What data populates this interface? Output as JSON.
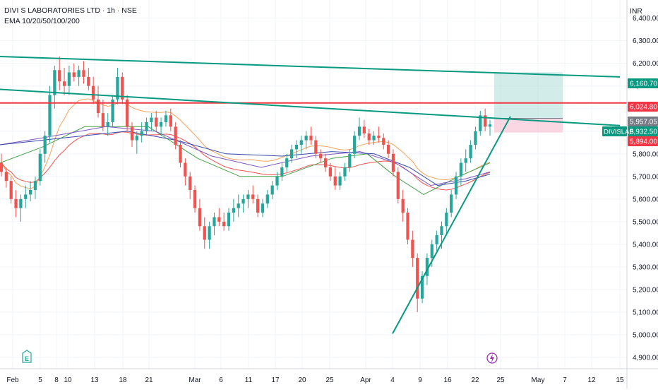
{
  "header": {
    "title": "DIVI S LABORATORIES LTD · 1h · NSE",
    "indicator": "EMA 10/20/50/100/200"
  },
  "unit": "INR",
  "colors": {
    "up": "#26a69a",
    "down": "#ef5350",
    "trendline": "#089981",
    "resistance": "#f23645",
    "ema10": "#f7a35c",
    "ema20": "#ef5350",
    "ema50": "#43a047",
    "ema100": "#7e57c2",
    "ema200": "#3949ab",
    "target_zone": "#b2dfdb",
    "stop_zone": "#f8bbd0"
  },
  "chart_data": {
    "type": "candlestick",
    "title": "DIVI S LABORATORIES LTD · 1h · NSE",
    "ylabel": "INR",
    "ylim": [
      4850,
      6480
    ],
    "y_ticks": [
      4900,
      5000,
      5100,
      5200,
      5300,
      5400,
      5500,
      5600,
      5700,
      5800,
      5900,
      6000,
      6100,
      6200,
      6300,
      6400
    ],
    "y_tick_labels": [
      "4,900.00",
      "5,000.00",
      "5,100.00",
      "5,200.00",
      "5,300.00",
      "5,400.00",
      "5,500.00",
      "5,600.00",
      "5,700.00",
      "5,800.00",
      "5,900.00",
      "6,000.00",
      "6,100.00",
      "6,200.00",
      "6,300.00",
      "6,400.00"
    ],
    "x_ticks": [
      "Feb",
      "5",
      "8",
      "10",
      "13",
      "18",
      "21",
      "Mar",
      "6",
      "11",
      "17",
      "20",
      "25",
      "Apr",
      "4",
      "9",
      "16",
      "22",
      "25",
      "May",
      "7",
      "12",
      "15"
    ],
    "price_marks": [
      {
        "label": "6,160.70",
        "value": 6160.7,
        "style": "trendline"
      },
      {
        "label": "6,024.80",
        "value": 6024.8,
        "style": "resistance"
      },
      {
        "label": "5,957.05",
        "value": 5957.05,
        "style": "neutral"
      },
      {
        "label": "5,932.50",
        "value": 5932.5,
        "style": "current"
      },
      {
        "label": "5,894.00",
        "value": 5894.0,
        "style": "stop"
      }
    ],
    "current_price": {
      "symbol": "DIVISLAB",
      "value": 5932.5
    },
    "horizontal_lines": [
      {
        "value": 6024.8,
        "role": "resistance"
      }
    ],
    "trendlines": [
      {
        "from": {
          "date": "Feb 1",
          "price": 6230
        },
        "to": {
          "date": "May 15",
          "price": 6140
        }
      },
      {
        "from": {
          "date": "Feb 1",
          "price": 6085
        },
        "to": {
          "date": "May 15",
          "price": 5925
        }
      },
      {
        "from": {
          "date": "Apr 4",
          "price": 5005
        },
        "to": {
          "date": "Apr 24",
          "price": 5965
        }
      }
    ],
    "position": {
      "type": "long",
      "entry": 5957.05,
      "target": 6160.7,
      "stop": 5894.0,
      "from_date": "Apr 23",
      "to_date": "May 2"
    },
    "ohlc": [
      [
        5760,
        5800,
        5700,
        5720
      ],
      [
        5720,
        5740,
        5650,
        5680
      ],
      [
        5680,
        5700,
        5580,
        5600
      ],
      [
        5600,
        5640,
        5520,
        5560
      ],
      [
        5560,
        5620,
        5500,
        5600
      ],
      [
        5600,
        5660,
        5560,
        5620
      ],
      [
        5620,
        5680,
        5590,
        5640
      ],
      [
        5640,
        5700,
        5600,
        5680
      ],
      [
        5680,
        5820,
        5660,
        5800
      ],
      [
        5800,
        5900,
        5760,
        5880
      ],
      [
        5880,
        6100,
        5850,
        6060
      ],
      [
        6060,
        6190,
        6000,
        6170
      ],
      [
        6170,
        6230,
        6080,
        6120
      ],
      [
        6120,
        6180,
        6060,
        6100
      ],
      [
        6100,
        6190,
        6060,
        6160
      ],
      [
        6160,
        6200,
        6120,
        6140
      ],
      [
        6140,
        6190,
        6100,
        6170
      ],
      [
        6170,
        6210,
        6110,
        6140
      ],
      [
        6140,
        6180,
        6080,
        6100
      ],
      [
        6100,
        6140,
        6020,
        6040
      ],
      [
        6040,
        6100,
        5960,
        5980
      ],
      [
        5980,
        6040,
        5900,
        5920
      ],
      [
        5920,
        5980,
        5880,
        5940
      ],
      [
        5940,
        6060,
        5920,
        6040
      ],
      [
        6040,
        6180,
        6020,
        6140
      ],
      [
        6140,
        6160,
        6020,
        6040
      ],
      [
        6040,
        6060,
        5900,
        5920
      ],
      [
        5920,
        5940,
        5830,
        5860
      ],
      [
        5860,
        5900,
        5800,
        5880
      ],
      [
        5880,
        5940,
        5850,
        5900
      ],
      [
        5900,
        5960,
        5880,
        5940
      ],
      [
        5940,
        5980,
        5900,
        5960
      ],
      [
        5960,
        5990,
        5900,
        5920
      ],
      [
        5920,
        5960,
        5880,
        5940
      ],
      [
        5940,
        5990,
        5920,
        5970
      ],
      [
        5970,
        6000,
        5900,
        5920
      ],
      [
        5920,
        5940,
        5820,
        5840
      ],
      [
        5840,
        5860,
        5740,
        5760
      ],
      [
        5760,
        5780,
        5660,
        5700
      ],
      [
        5700,
        5720,
        5600,
        5640
      ],
      [
        5640,
        5660,
        5540,
        5560
      ],
      [
        5560,
        5600,
        5460,
        5480
      ],
      [
        5480,
        5520,
        5380,
        5420
      ],
      [
        5420,
        5500,
        5380,
        5480
      ],
      [
        5480,
        5540,
        5440,
        5520
      ],
      [
        5520,
        5560,
        5480,
        5500
      ],
      [
        5500,
        5540,
        5460,
        5480
      ],
      [
        5480,
        5560,
        5460,
        5540
      ],
      [
        5540,
        5600,
        5500,
        5560
      ],
      [
        5560,
        5620,
        5520,
        5580
      ],
      [
        5580,
        5620,
        5540,
        5600
      ],
      [
        5600,
        5640,
        5560,
        5620
      ],
      [
        5620,
        5660,
        5580,
        5600
      ],
      [
        5600,
        5620,
        5520,
        5540
      ],
      [
        5540,
        5600,
        5520,
        5580
      ],
      [
        5580,
        5640,
        5560,
        5620
      ],
      [
        5620,
        5680,
        5600,
        5660
      ],
      [
        5660,
        5720,
        5640,
        5700
      ],
      [
        5700,
        5760,
        5680,
        5740
      ],
      [
        5740,
        5800,
        5720,
        5780
      ],
      [
        5780,
        5840,
        5760,
        5820
      ],
      [
        5820,
        5860,
        5780,
        5840
      ],
      [
        5840,
        5880,
        5800,
        5860
      ],
      [
        5860,
        5900,
        5820,
        5880
      ],
      [
        5880,
        5920,
        5840,
        5860
      ],
      [
        5860,
        5880,
        5780,
        5800
      ],
      [
        5800,
        5820,
        5760,
        5780
      ],
      [
        5780,
        5800,
        5720,
        5740
      ],
      [
        5740,
        5760,
        5680,
        5700
      ],
      [
        5700,
        5740,
        5640,
        5660
      ],
      [
        5660,
        5720,
        5640,
        5700
      ],
      [
        5700,
        5760,
        5680,
        5740
      ],
      [
        5740,
        5820,
        5720,
        5800
      ],
      [
        5800,
        5900,
        5780,
        5880
      ],
      [
        5880,
        5960,
        5860,
        5920
      ],
      [
        5920,
        5950,
        5870,
        5890
      ],
      [
        5890,
        5910,
        5840,
        5860
      ],
      [
        5860,
        5900,
        5840,
        5880
      ],
      [
        5880,
        5920,
        5850,
        5870
      ],
      [
        5870,
        5890,
        5820,
        5840
      ],
      [
        5840,
        5860,
        5780,
        5800
      ],
      [
        5800,
        5820,
        5700,
        5720
      ],
      [
        5720,
        5740,
        5580,
        5600
      ],
      [
        5600,
        5640,
        5500,
        5540
      ],
      [
        5540,
        5560,
        5400,
        5420
      ],
      [
        5420,
        5460,
        5300,
        5340
      ],
      [
        5340,
        5360,
        5100,
        5160
      ],
      [
        5160,
        5280,
        5140,
        5260
      ],
      [
        5260,
        5360,
        5220,
        5340
      ],
      [
        5340,
        5420,
        5300,
        5400
      ],
      [
        5400,
        5460,
        5360,
        5440
      ],
      [
        5440,
        5500,
        5380,
        5480
      ],
      [
        5480,
        5560,
        5440,
        5540
      ],
      [
        5540,
        5640,
        5520,
        5620
      ],
      [
        5620,
        5720,
        5600,
        5700
      ],
      [
        5700,
        5780,
        5660,
        5760
      ],
      [
        5760,
        5820,
        5720,
        5780
      ],
      [
        5780,
        5860,
        5760,
        5840
      ],
      [
        5840,
        5920,
        5820,
        5900
      ],
      [
        5900,
        5990,
        5880,
        5970
      ],
      [
        5970,
        6000,
        5900,
        5920
      ],
      [
        5920,
        5950,
        5880,
        5930
      ]
    ],
    "ema": [
      {
        "name": "EMA 10",
        "values": [
          5760,
          5723,
          5705,
          5671,
          5657,
          5651,
          5645,
          5657,
          5699,
          5743,
          5794,
          5861,
          5920,
          5955,
          5995,
          6016,
          6035,
          6041,
          6043,
          6035,
          6026,
          6016,
          6010,
          6014,
          6025,
          6025,
          6018,
          6005,
          5996,
          5990,
          5986,
          5984,
          5983,
          5983,
          5985,
          5982,
          5967,
          5949,
          5927,
          5905,
          5883,
          5860,
          5835,
          5819,
          5808,
          5797,
          5787,
          5780,
          5776,
          5774,
          5773,
          5774,
          5774,
          5770,
          5768,
          5767,
          5770,
          5776,
          5784,
          5792,
          5800,
          5809,
          5817,
          5827,
          5834,
          5835,
          5835,
          5833,
          5829,
          5823,
          5819,
          5817,
          5819,
          5826,
          5836,
          5842,
          5846,
          5850,
          5853,
          5854,
          5850,
          5841,
          5824,
          5807,
          5786,
          5766,
          5736,
          5716,
          5703,
          5696,
          5690,
          5686,
          5685,
          5690,
          5695,
          5705,
          5713,
          5722,
          5732,
          5745,
          5755,
          5762
        ]
      },
      {
        "name": "EMA 20",
        "values": [
          5760,
          5733,
          5720,
          5695,
          5684,
          5678,
          5673,
          5676,
          5694,
          5715,
          5740,
          5770,
          5795,
          5815,
          5838,
          5855,
          5869,
          5878,
          5887,
          5890,
          5891,
          5888,
          5884,
          5886,
          5894,
          5897,
          5895,
          5890,
          5887,
          5884,
          5883,
          5884,
          5884,
          5885,
          5887,
          5885,
          5878,
          5869,
          5857,
          5845,
          5830,
          5812,
          5793,
          5779,
          5767,
          5756,
          5745,
          5738,
          5732,
          5728,
          5725,
          5722,
          5718,
          5714,
          5710,
          5708,
          5707,
          5708,
          5711,
          5716,
          5722,
          5729,
          5736,
          5744,
          5751,
          5752,
          5752,
          5751,
          5748,
          5744,
          5740,
          5738,
          5739,
          5744,
          5751,
          5756,
          5760,
          5763,
          5766,
          5768,
          5767,
          5763,
          5752,
          5741,
          5726,
          5711,
          5689,
          5672,
          5660,
          5652,
          5646,
          5642,
          5640,
          5643,
          5649,
          5658,
          5667,
          5676,
          5687,
          5699,
          5710,
          5718
        ]
      }
    ]
  }
}
